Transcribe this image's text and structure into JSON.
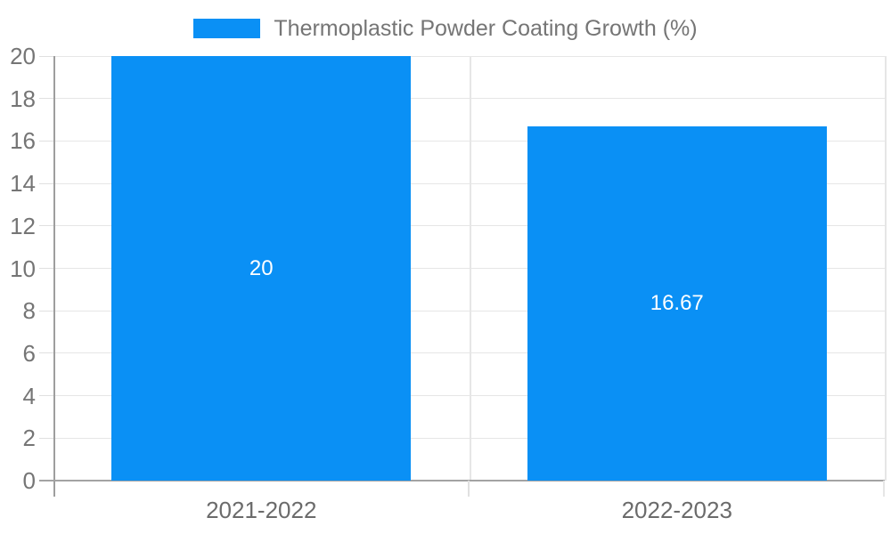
{
  "chart_data": {
    "type": "bar",
    "title": "",
    "legend": {
      "position": "top",
      "label": "Thermoplastic Powder Coating Growth (%)"
    },
    "categories": [
      "2021-2022",
      "2022-2023"
    ],
    "series": [
      {
        "name": "Thermoplastic Powder Coating Growth (%)",
        "values": [
          20,
          16.67
        ],
        "value_labels": [
          "20",
          "16.67"
        ],
        "color": "#0a90f5"
      }
    ],
    "xlabel": "",
    "ylabel": "",
    "ylim": [
      0,
      20
    ],
    "yticks": [
      0,
      2,
      4,
      6,
      8,
      10,
      12,
      14,
      16,
      18,
      20
    ],
    "grid": true,
    "background": "#ffffff"
  },
  "colors": {
    "bar": "#0a90f5",
    "gridline": "#e6e6e6",
    "axis_line": "#9e9e9e",
    "baseline": "#a3a3a3",
    "tick_stub": "#e0e0e0",
    "y_label_text": "#757575",
    "x_label_text": "#6b6b6b",
    "legend_text": "#757575",
    "value_label_text": "#ffffff"
  }
}
